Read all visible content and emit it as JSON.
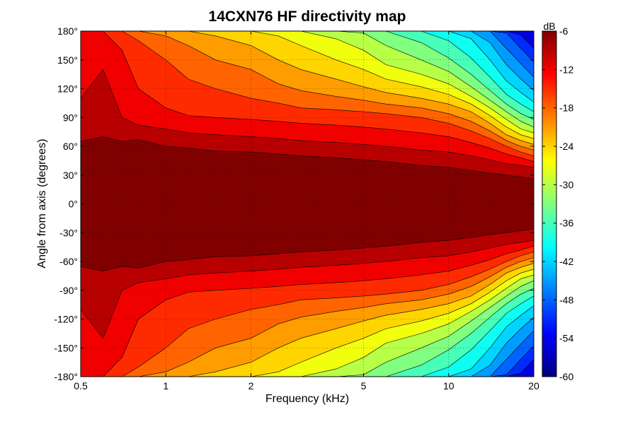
{
  "chart_data": {
    "type": "heatmap",
    "title": "14CXN76 HF directivity map",
    "xlabel": "Frequency (kHz)",
    "ylabel": "Angle from axis (degrees)",
    "x_scale": "log",
    "xlim": [
      0.5,
      20
    ],
    "ylim": [
      -180,
      180
    ],
    "x_ticks": [
      0.5,
      1,
      2,
      5,
      10,
      20
    ],
    "x_tick_labels": [
      "0.5",
      "1",
      "2",
      "5",
      "10",
      "20"
    ],
    "y_ticks": [
      180,
      150,
      120,
      90,
      60,
      30,
      0,
      -30,
      -60,
      -90,
      -120,
      -150,
      -180
    ],
    "y_tick_labels": [
      "180°",
      "150°",
      "120°",
      "90°",
      "60°",
      "30°",
      "0°",
      "-30°",
      "-60°",
      "-90°",
      "-120°",
      "-150°",
      "-180°"
    ],
    "grid": true,
    "grid_style": "dotted",
    "colorbar": {
      "unit_label": "dB",
      "range": [
        -60,
        -6
      ],
      "ticks": [
        -6,
        -12,
        -18,
        -24,
        -30,
        -36,
        -42,
        -48,
        -54,
        -60
      ],
      "tick_labels": [
        "-6",
        "-12",
        "-18",
        "-24",
        "-30",
        "-36",
        "-42",
        "-48",
        "-54",
        "-60"
      ],
      "colormap": "jet",
      "colors": [
        "#000080",
        "#0000ff",
        "#0080ff",
        "#00ffff",
        "#80ff80",
        "#ffff00",
        "#ff8000",
        "#ff0000",
        "#800000"
      ]
    },
    "contour_levels_db": [
      -51,
      -48,
      -45,
      -42,
      -39,
      -36,
      -33,
      -30,
      -27,
      -24,
      -21,
      -18,
      -15,
      -12,
      -9,
      -6
    ],
    "contour_boundaries_deg": {
      "frequencies_khz": [
        0.5,
        0.6,
        0.7,
        0.8,
        1,
        1.2,
        1.5,
        2,
        2.5,
        3,
        4,
        5,
        6,
        8,
        10,
        12,
        14,
        16,
        18,
        20
      ],
      "level_-6": [
        65,
        70,
        65,
        67,
        60,
        58,
        55,
        54,
        52,
        50,
        48,
        46,
        44,
        40,
        38,
        35,
        32,
        30,
        28,
        26
      ],
      "level_-9": [
        110,
        140,
        90,
        82,
        78,
        74,
        72,
        70,
        68,
        66,
        64,
        62,
        60,
        56,
        54,
        50,
        46,
        42,
        40,
        38
      ],
      "level_-12": [
        180,
        180,
        160,
        120,
        100,
        92,
        90,
        88,
        86,
        84,
        82,
        80,
        78,
        74,
        70,
        64,
        58,
        52,
        48,
        44
      ],
      "level_-15": [
        180,
        180,
        180,
        170,
        150,
        130,
        120,
        110,
        105,
        100,
        98,
        96,
        94,
        90,
        84,
        76,
        68,
        60,
        54,
        50
      ],
      "level_-18": [
        180,
        180,
        180,
        180,
        175,
        165,
        150,
        140,
        125,
        118,
        112,
        108,
        104,
        100,
        94,
        86,
        76,
        66,
        60,
        56
      ],
      "level_-21": [
        180,
        180,
        180,
        180,
        180,
        180,
        175,
        165,
        150,
        140,
        130,
        122,
        116,
        110,
        104,
        96,
        84,
        72,
        66,
        62
      ],
      "level_-24": [
        180,
        180,
        180,
        180,
        180,
        180,
        180,
        180,
        175,
        165,
        150,
        140,
        130,
        122,
        114,
        104,
        92,
        80,
        72,
        68
      ],
      "level_-27": [
        180,
        180,
        180,
        180,
        180,
        180,
        180,
        180,
        180,
        180,
        172,
        160,
        145,
        135,
        125,
        112,
        100,
        88,
        78,
        74
      ],
      "level_-30": [
        180,
        180,
        180,
        180,
        180,
        180,
        180,
        180,
        180,
        180,
        180,
        178,
        165,
        150,
        138,
        122,
        108,
        96,
        86,
        80
      ],
      "level_-33": [
        180,
        180,
        180,
        180,
        180,
        180,
        180,
        180,
        180,
        180,
        180,
        180,
        180,
        168,
        152,
        135,
        118,
        104,
        94,
        88
      ],
      "level_-36": [
        180,
        180,
        180,
        180,
        180,
        180,
        180,
        180,
        180,
        180,
        180,
        180,
        180,
        180,
        170,
        152,
        132,
        114,
        104,
        96
      ],
      "level_-39": [
        180,
        180,
        180,
        180,
        180,
        180,
        180,
        180,
        180,
        180,
        180,
        180,
        180,
        180,
        180,
        172,
        150,
        128,
        116,
        106
      ],
      "level_-42": [
        180,
        180,
        180,
        180,
        180,
        180,
        180,
        180,
        180,
        180,
        180,
        180,
        180,
        180,
        180,
        180,
        168,
        145,
        130,
        118
      ],
      "level_-45": [
        180,
        180,
        180,
        180,
        180,
        180,
        180,
        180,
        180,
        180,
        180,
        180,
        180,
        180,
        180,
        180,
        180,
        162,
        146,
        132
      ],
      "level_-48": [
        180,
        180,
        180,
        180,
        180,
        180,
        180,
        180,
        180,
        180,
        180,
        180,
        180,
        180,
        180,
        180,
        180,
        178,
        162,
        148
      ],
      "level_-51": [
        180,
        180,
        180,
        180,
        180,
        180,
        180,
        180,
        180,
        180,
        180,
        180,
        180,
        180,
        180,
        180,
        180,
        180,
        176,
        162
      ]
    }
  }
}
